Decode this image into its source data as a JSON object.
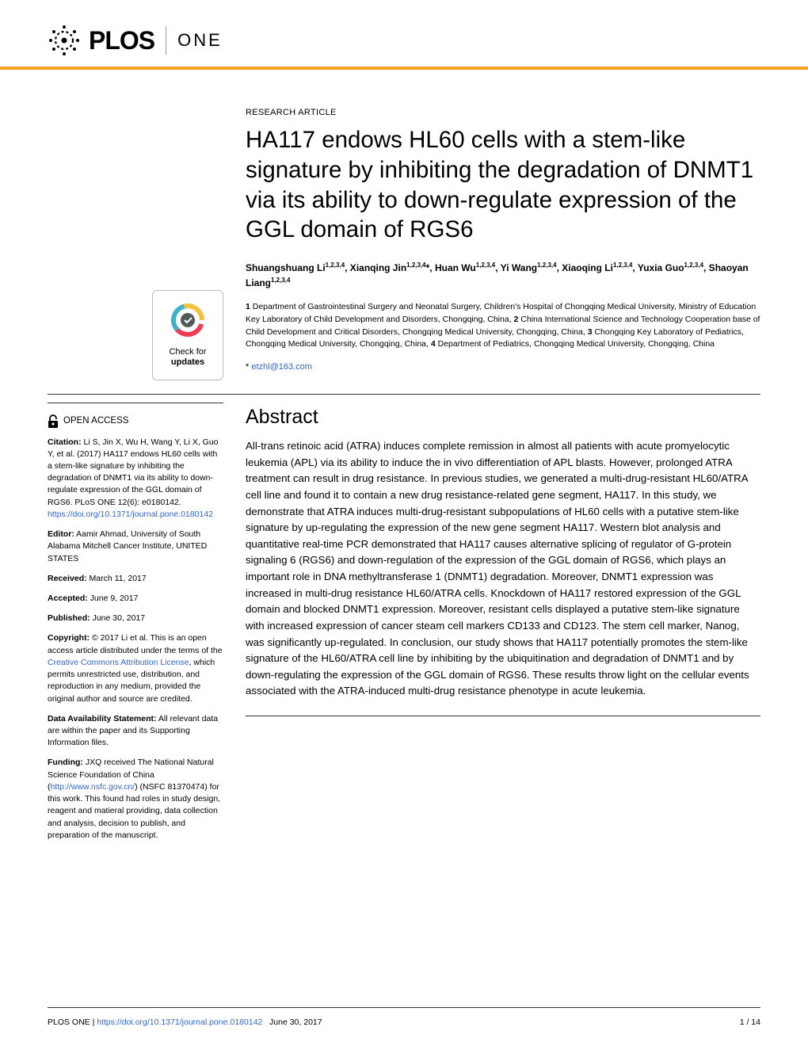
{
  "header": {
    "brand": "PLOS",
    "journal": "ONE"
  },
  "checkUpdates": {
    "line1": "Check for",
    "line2": "updates"
  },
  "sidebar": {
    "openAccess": "OPEN ACCESS",
    "citationLabel": "Citation:",
    "citationText": " Li S, Jin X, Wu H, Wang Y, Li X, Guo Y, et al. (2017) HA117 endows HL60 cells with a stem-like signature by inhibiting the degradation of DNMT1 via its ability to down-regulate expression of the GGL domain of RGS6. PLoS ONE 12(6): e0180142. ",
    "citationDoi": "https://doi.org/10.1371/journal.pone.0180142",
    "editorLabel": "Editor:",
    "editorText": " Aamir Ahmad, University of South Alabama Mitchell Cancer Institute, UNITED STATES",
    "receivedLabel": "Received:",
    "receivedText": " March 11, 2017",
    "acceptedLabel": "Accepted:",
    "acceptedText": " June 9, 2017",
    "publishedLabel": "Published:",
    "publishedText": " June 30, 2017",
    "copyrightLabel": "Copyright:",
    "copyrightText1": " © 2017 Li et al. This is an open access article distributed under the terms of the ",
    "copyrightLink": "Creative Commons Attribution License",
    "copyrightText2": ", which permits unrestricted use, distribution, and reproduction in any medium, provided the original author and source are credited.",
    "dataLabel": "Data Availability Statement:",
    "dataText": " All relevant data are within the paper and its Supporting Information files.",
    "fundingLabel": "Funding:",
    "fundingText1": " JXQ received The National Natural Science Foundation of China (",
    "fundingLink": "http://www.nsfc.gov.cn/",
    "fundingText2": ") (NSFC 81370474) for this work. This found had roles in study design, reagent and matieral providing, data collection and analysis, decision to publish, and preparation of the manuscript."
  },
  "article": {
    "type": "RESEARCH ARTICLE",
    "title": "HA117 endows HL60 cells with a stem-like signature by inhibiting the degradation of DNMT1 via its ability to down-regulate expression of the GGL domain of RGS6",
    "authorsHtml": "Shuangshuang Li<sup>1,2,3,4</sup>, Xianqing Jin<sup>1,2,3,4</sup>*, Huan Wu<sup>1,2,3,4</sup>, Yi Wang<sup>1,2,3,4</sup>, Xiaoqing Li<sup>1,2,3,4</sup>, Yuxia Guo<sup>1,2,3,4</sup>, Shaoyan Liang<sup>1,2,3,4</sup>",
    "affiliationsHtml": "<b>1</b> Department of Gastrointestinal Surgery and Neonatal Surgery, Children's Hospital of Chongqing Medical University, Ministry of Education Key Laboratory of Child Development and Disorders, Chongqing, China, <b>2</b> China International Science and Technology Cooperation base of Child Development and Critical Disorders, Chongqing Medical University, Chongqing, China, <b>3</b> Chongqing Key Laboratory of Pediatrics, Chongqing Medical University, Chongqing, China, <b>4</b> Department of Pediatrics, Chongqing Medical University, Chongqing, China",
    "correspondingStar": "*",
    "correspondingEmail": "etzhl@163.com",
    "abstractHeading": "Abstract",
    "abstractBody": "All-trans retinoic acid (ATRA) induces complete remission in almost all patients with acute promyelocytic leukemia (APL) via its ability to induce the in vivo differentiation of APL blasts. However, prolonged ATRA treatment can result in drug resistance. In previous studies, we generated a multi-drug-resistant HL60/ATRA cell line and found it to contain a new drug resistance-related gene segment, HA117. In this study, we demonstrate that ATRA induces multi-drug-resistant subpopulations of HL60 cells with a putative stem-like signature by up-regulating the expression of the new gene segment HA117. Western blot analysis and quantitative real-time PCR demonstrated that HA117 causes alternative splicing of regulator of G-protein signaling 6 (RGS6) and down-regulation of the expression of the GGL domain of RGS6, which plays an important role in DNA methyltransferase 1 (DNMT1) degradation. Moreover, DNMT1 expression was increased in multi-drug resistance HL60/ATRA cells. Knockdown of HA117 restored expression of the GGL domain and blocked DNMT1 expression. Moreover, resistant cells displayed a putative stem-like signature with increased expression of cancer steam cell markers CD133 and CD123. The stem cell marker, Nanog, was significantly up-regulated. In conclusion, our study shows that HA117 potentially promotes the stem-like signature of the HL60/ATRA cell line by inhibiting by the ubiquitination and degradation of DNMT1 and by down-regulating the expression of the GGL domain of RGS6. These results throw light on the cellular events associated with the ATRA-induced multi-drug resistance phenotype in acute leukemia."
  },
  "footer": {
    "journal": "PLOS ONE | ",
    "doi": "https://doi.org/10.1371/journal.pone.0180142",
    "date": "June 30, 2017",
    "page": "1 / 14"
  },
  "colors": {
    "accent": "#f7a01b",
    "link": "#3366cc",
    "ringRed": "#ef3b54",
    "ringTeal": "#3eb2c6",
    "ringYellow": "#f6c13e"
  }
}
